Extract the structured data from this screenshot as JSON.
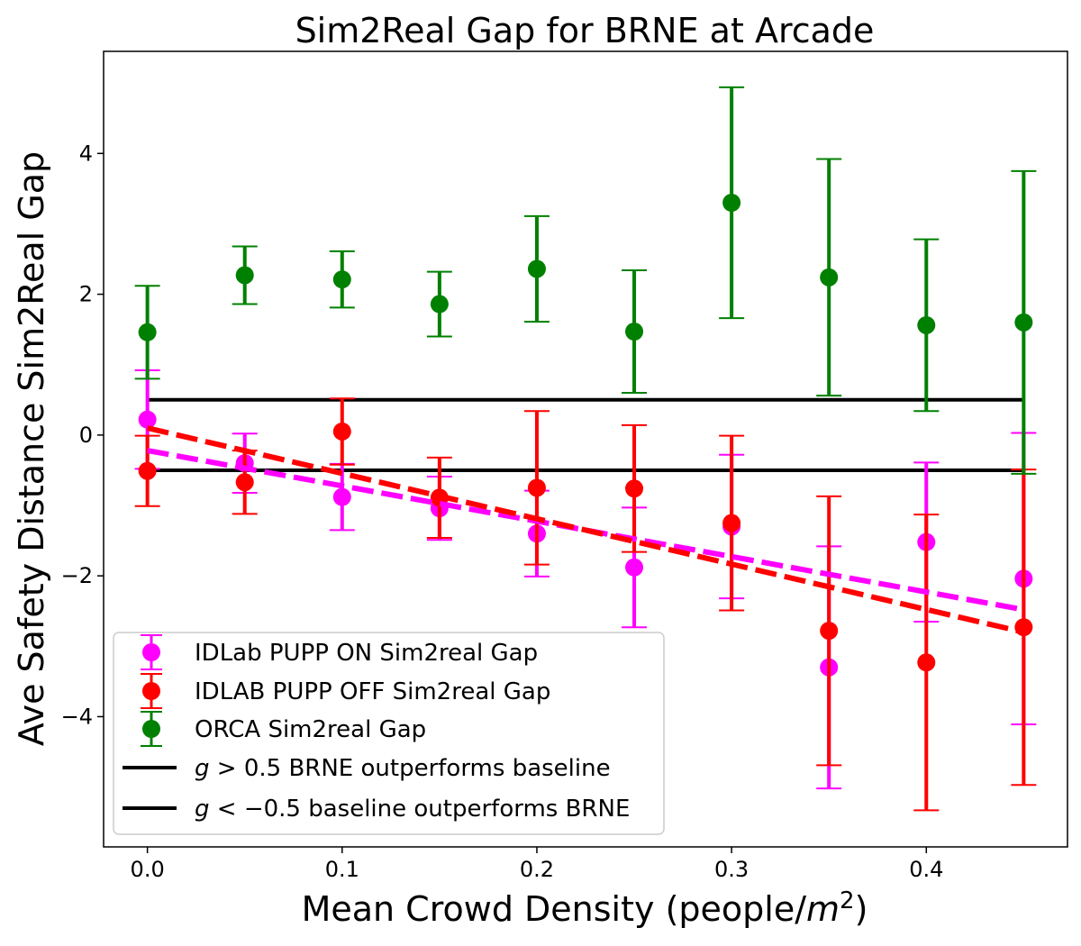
{
  "chart_data": {
    "type": "scatter",
    "title": "Sim2Real Gap for BRNE at Arcade",
    "xlabel": "Mean Crowd Density (people/",
    "xlabel_unit": "m",
    "xlabel_exp": "2",
    "xlabel_close": ")",
    "ylabel": "Ave Safety Distance Sim2Real Gap",
    "xlim": [
      -0.0225,
      0.4725
    ],
    "ylim": [
      -5.85,
      5.45
    ],
    "xticks": [
      0.0,
      0.1,
      0.2,
      0.3,
      0.4
    ],
    "xtick_labels": [
      "0.0",
      "0.1",
      "0.2",
      "0.3",
      "0.4"
    ],
    "yticks": [
      -4,
      -2,
      0,
      2,
      4
    ],
    "ytick_labels": [
      "−4",
      "−2",
      "0",
      "2",
      "4"
    ],
    "grid": false,
    "legend_position": "lower-left",
    "x": [
      0.0,
      0.05,
      0.1,
      0.15,
      0.2,
      0.25,
      0.3,
      0.35,
      0.4,
      0.45
    ],
    "series": [
      {
        "name": "IDLab PUPP ON Sim2real Gap",
        "color": "#ff00ff",
        "values": [
          0.22,
          -0.4,
          -0.88,
          -1.04,
          -1.4,
          -1.88,
          -1.3,
          -3.3,
          -1.52,
          -2.04
        ],
        "errors": [
          0.7,
          0.42,
          0.47,
          0.45,
          0.61,
          0.85,
          1.02,
          1.72,
          1.13,
          2.07
        ]
      },
      {
        "name": "IDLAB PUPP OFF Sim2real Gap",
        "color": "#ff0000",
        "values": [
          -0.51,
          -0.67,
          0.05,
          -0.89,
          -0.75,
          -0.76,
          -1.25,
          -2.78,
          -3.23,
          -2.73
        ],
        "errors": [
          0.5,
          0.45,
          0.47,
          0.57,
          1.09,
          0.9,
          1.24,
          1.91,
          2.1,
          2.24
        ]
      },
      {
        "name": "ORCA Sim2real Gap",
        "color": "#008000",
        "values": [
          1.46,
          2.27,
          2.21,
          1.86,
          2.36,
          1.47,
          3.3,
          2.24,
          1.56,
          1.6
        ],
        "errors": [
          0.66,
          0.41,
          0.4,
          0.46,
          0.75,
          0.87,
          1.64,
          1.68,
          1.22,
          2.15
        ]
      }
    ],
    "trend_lines": [
      {
        "series": "IDLab PUPP ON Sim2real Gap",
        "color": "#ff00ff",
        "x": [
          0.0,
          0.45
        ],
        "y": [
          -0.22,
          -2.48
        ]
      },
      {
        "series": "IDLAB PUPP OFF Sim2real Gap",
        "color": "#ff0000",
        "x": [
          0.0,
          0.45
        ],
        "y": [
          0.1,
          -2.8
        ]
      }
    ],
    "reference_lines": [
      {
        "y": 0.5,
        "color": "#000000",
        "x": [
          0.0,
          0.45
        ],
        "label_pre": "g",
        "label_op": " > 0.5 BRNE outperforms baseline"
      },
      {
        "y": -0.5,
        "color": "#000000",
        "x": [
          0.0,
          0.45
        ],
        "label_pre": "g",
        "label_op": " < −0.5 baseline outperforms BRNE"
      }
    ]
  }
}
